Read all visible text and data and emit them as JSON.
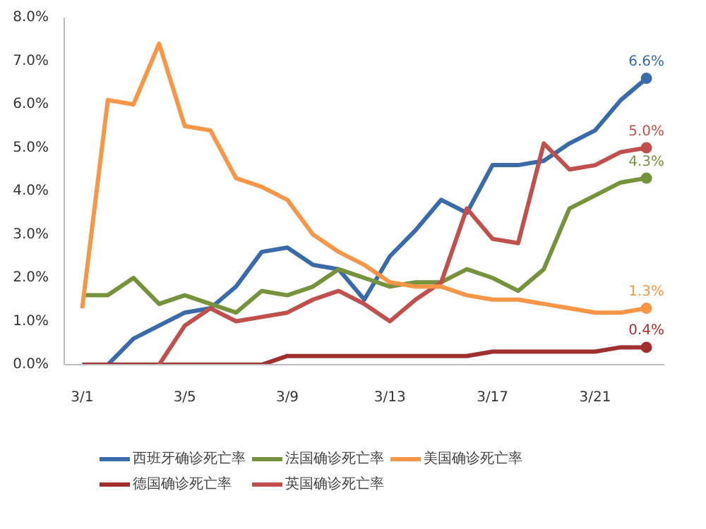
{
  "chart_data": {
    "type": "line",
    "categories": [
      "3/1",
      null,
      null,
      null,
      "3/5",
      null,
      null,
      null,
      "3/9",
      null,
      null,
      null,
      "3/13",
      null,
      null,
      null,
      "3/17",
      null,
      null,
      null,
      "3/21",
      null,
      null
    ],
    "ylim": [
      0,
      8
    ],
    "yticks": [
      {
        "value": 0,
        "label": "0.0%"
      },
      {
        "value": 1,
        "label": "1.0%"
      },
      {
        "value": 2,
        "label": "2.0%"
      },
      {
        "value": 3,
        "label": "3.0%"
      },
      {
        "value": 4,
        "label": "4.0%"
      },
      {
        "value": 5,
        "label": "5.0%"
      },
      {
        "value": 6,
        "label": "6.0%"
      },
      {
        "value": 7,
        "label": "7.0%"
      },
      {
        "value": 8,
        "label": "8.0%"
      }
    ],
    "series": [
      {
        "name": "西班牙确诊死亡率",
        "color": "#3a6aa8",
        "values": [
          null,
          0,
          0.6,
          0.9,
          1.2,
          1.3,
          1.8,
          2.6,
          2.7,
          2.3,
          2.2,
          1.5,
          2.5,
          3.1,
          3.8,
          3.5,
          4.6,
          4.6,
          4.7,
          5.1,
          5.4,
          6.1,
          6.6
        ]
      },
      {
        "name": "德国确诊死亡率",
        "color": "#a03030",
        "values": [
          0,
          0,
          0,
          0,
          0,
          0,
          0,
          0,
          0.2,
          0.2,
          0.2,
          0.2,
          0.2,
          0.2,
          0.2,
          0.2,
          0.3,
          0.3,
          0.3,
          0.3,
          0.3,
          0.4,
          0.4
        ]
      },
      {
        "name": "法国确诊死亡率",
        "color": "#76923c",
        "values": [
          1.6,
          1.6,
          2.0,
          1.4,
          1.6,
          1.4,
          1.2,
          1.7,
          1.6,
          1.8,
          2.2,
          2.0,
          1.8,
          1.9,
          1.9,
          2.2,
          2.0,
          1.7,
          2.2,
          3.6,
          3.9,
          4.2,
          4.3
        ]
      },
      {
        "name": "英国确诊死亡率",
        "color": "#c0504d",
        "values": [
          null,
          null,
          null,
          0,
          0.9,
          1.3,
          1.0,
          1.1,
          1.2,
          1.5,
          1.7,
          1.4,
          1.0,
          1.5,
          1.9,
          3.6,
          2.9,
          2.8,
          5.1,
          4.5,
          4.6,
          4.9,
          5.0
        ]
      },
      {
        "name": "美国确诊死亡率",
        "color": "#f79646",
        "values": [
          1.3,
          6.1,
          6.0,
          7.4,
          5.5,
          5.4,
          4.3,
          4.1,
          3.8,
          3.0,
          2.6,
          2.3,
          1.9,
          1.8,
          1.8,
          1.6,
          1.5,
          1.5,
          1.4,
          1.3,
          1.2,
          1.2,
          1.3
        ]
      }
    ],
    "annotations": [
      {
        "text": "6.6%",
        "y": 6.6
      },
      {
        "text": "5.0%",
        "y": 5.0
      },
      {
        "text": "4.3%",
        "y": 4.3
      },
      {
        "text": "1.3%",
        "y": 1.3
      },
      {
        "text": "0.4%",
        "y": 0.4
      }
    ],
    "grid": false,
    "legend": "bottom",
    "marker": "none",
    "line_style": "solid"
  }
}
